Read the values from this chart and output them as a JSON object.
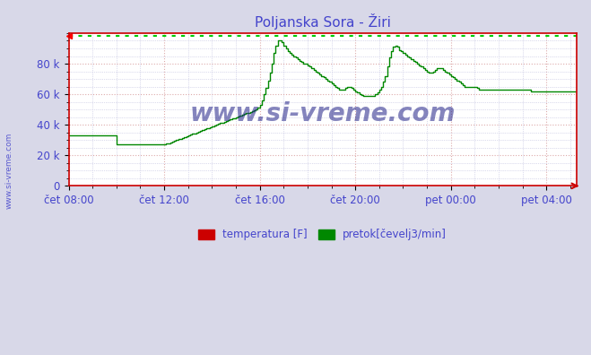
{
  "title": "Poljanska Sora - Žiri",
  "title_color": "#4444cc",
  "bg_color": "#d8d8e8",
  "plot_bg_color": "#ffffff",
  "grid_color_major": "#ddaaaa",
  "grid_color_minor": "#bbbbdd",
  "line_color": "#008800",
  "dotted_line_color": "#00cc00",
  "dotted_line_y": 98500,
  "yticks": [
    0,
    20000,
    40000,
    60000,
    80000
  ],
  "ytick_labels": [
    "0",
    "20 k",
    "40 k",
    "60 k",
    "80 k"
  ],
  "xtick_labels": [
    "čet 08:00",
    "čet 12:00",
    "čet 16:00",
    "čet 20:00",
    "pet 00:00",
    "pet 04:00"
  ],
  "ylim": [
    0,
    100000
  ],
  "watermark": "www.si-vreme.com",
  "watermark_color": "#222288",
  "legend_labels": [
    "temperatura [F]",
    "pretok[čevelj3/min]"
  ],
  "legend_colors": [
    "#cc0000",
    "#008800"
  ],
  "axis_color": "#cc0000",
  "tick_color": "#4444cc",
  "flow_data": [
    33000,
    33000,
    33000,
    33000,
    33000,
    33000,
    33000,
    33000,
    33000,
    33000,
    33000,
    33000,
    33000,
    33000,
    33000,
    33000,
    33000,
    33000,
    33000,
    33000,
    33000,
    33000,
    33000,
    33000,
    27000,
    27000,
    27000,
    27000,
    27000,
    27000,
    27000,
    27000,
    27000,
    27000,
    27000,
    27000,
    27000,
    27000,
    27000,
    27000,
    27000,
    27000,
    27000,
    27000,
    27000,
    27000,
    27000,
    27000,
    27000,
    27500,
    28000,
    28500,
    29000,
    29500,
    30000,
    30500,
    31000,
    31500,
    32000,
    32500,
    33000,
    33500,
    34000,
    34500,
    35000,
    35500,
    36000,
    36500,
    37000,
    37500,
    38000,
    38500,
    39000,
    39500,
    40000,
    40500,
    41000,
    41500,
    42000,
    42500,
    43000,
    43500,
    44000,
    44500,
    45000,
    45500,
    46000,
    46500,
    47000,
    47500,
    48000,
    48500,
    49000,
    49500,
    50000,
    51000,
    53000,
    56000,
    60000,
    64000,
    69000,
    74000,
    80000,
    87000,
    92000,
    95000,
    95000,
    94000,
    92000,
    90000,
    88000,
    87000,
    86000,
    85000,
    84000,
    83000,
    82000,
    81000,
    80000,
    80000,
    79000,
    78000,
    77000,
    76000,
    75000,
    74000,
    73000,
    72000,
    71000,
    70000,
    69000,
    68000,
    67000,
    66000,
    65000,
    64000,
    63000,
    63000,
    63000,
    64000,
    65000,
    65000,
    64000,
    63000,
    62000,
    61000,
    60000,
    59500,
    59000,
    59000,
    59000,
    59000,
    59000,
    59000,
    60000,
    61000,
    63000,
    65000,
    68000,
    72000,
    78000,
    84000,
    88000,
    91000,
    92000,
    91000,
    89000,
    88000,
    87000,
    86000,
    85000,
    84000,
    83000,
    82000,
    81000,
    80000,
    79000,
    78000,
    77000,
    76000,
    75000,
    74000,
    74000,
    75000,
    76000,
    77000,
    77000,
    77000,
    76000,
    75000,
    74000,
    73000,
    72000,
    71000,
    70000,
    69000,
    68000,
    67000,
    66000,
    65000,
    65000,
    65000,
    65000,
    65000,
    65000,
    64000,
    63000,
    63000,
    63000,
    63000,
    63000,
    63000,
    63000,
    63000,
    63000,
    63000,
    63000,
    63000,
    63000,
    63000,
    63000,
    63000,
    63000,
    63000,
    63000,
    63000,
    63000,
    63000,
    63000,
    63000,
    63000,
    63000,
    62000,
    62000,
    62000,
    62000,
    62000,
    62000,
    62000,
    62000,
    62000,
    62000,
    62000,
    62000,
    62000,
    62000,
    62000,
    62000,
    62000,
    62000,
    62000,
    62000,
    62000,
    62000,
    62000,
    62000
  ]
}
